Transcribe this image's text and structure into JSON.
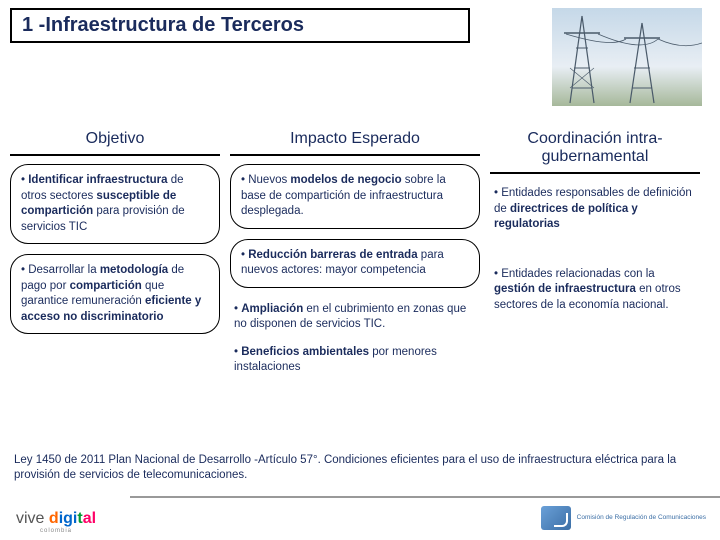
{
  "title": "1 -Infraestructura de Terceros",
  "columns": {
    "objetivo": {
      "heading": "Objetivo",
      "bubbles": [
        "• <span class='b'>Identificar infraestructura</span> de otros sectores <span class='b'>susceptible de compartición</span> para provisión de servicios TIC",
        "• Desarrollar la <span class='b'>metodología</span> de pago por <span class='b'>compartición</span> que garantice remuneración <span class='b'>eficiente y acceso no discriminatorio</span>"
      ]
    },
    "impacto": {
      "heading": "Impacto Esperado",
      "bubbles": [
        "• Nuevos <span class='b'>modelos de negocio</span> sobre la base de compartición de infraestructura desplegada.",
        "• <span class='b'>Reducción barreras de entrada</span> para nuevos actores: mayor competencia"
      ],
      "flats": [
        "• <span class='b'>Ampliación</span> en el cubrimiento en zonas que no disponen de servicios TIC.",
        "• <span class='b'>Beneficios ambientales</span> por menores instalaciones"
      ]
    },
    "coord": {
      "heading": "Coordinación intra-gubernamental",
      "flats": [
        "• Entidades responsables de definición de <span class='b'>directrices de política y regulatorias</span>",
        "• Entidades relacionadas con la <span class='b'>gestión de infraestructura</span> en otros sectores de la economía nacional."
      ]
    }
  },
  "footnote": "Ley 1450 de 2011 Plan Nacional de Desarrollo -Artículo 57°. Condiciones eficientes para el uso de infraestructura eléctrica para la provisión de servicios de telecomunicaciones.",
  "logos": {
    "vive": {
      "t1": "vive ",
      "t2": "d",
      "t3": "igi",
      "t4": "t",
      "t5": "al",
      "sub": "colombia"
    },
    "crc": "Comisión de Regulación de Comunicaciones"
  },
  "colors": {
    "text": "#1a2b5c",
    "border": "#000000",
    "bg": "#ffffff"
  }
}
